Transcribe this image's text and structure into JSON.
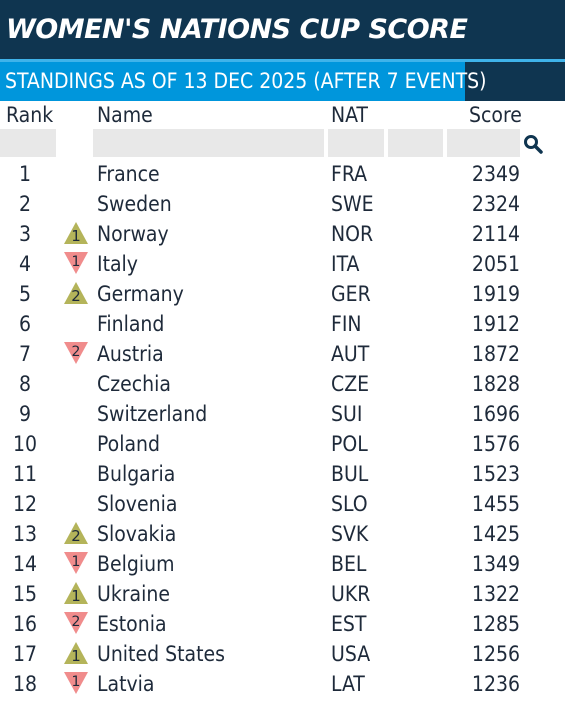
{
  "title": "WOMEN'S NATIONS CUP SCORE",
  "subtitle": "STANDINGS AS OF 13 DEC 2025 (AFTER 7 EVENTS)",
  "columns": {
    "rank": "Rank",
    "name": "Name",
    "nat": "NAT",
    "score": "Score"
  },
  "colors": {
    "header_bg": "#0f3550",
    "tab_bg": "#0096dc",
    "up": "#b4b45a",
    "down": "#f08c8c"
  },
  "rows": [
    {
      "rank": "1",
      "name": "France",
      "nat": "FRA",
      "score": "2349",
      "move": "",
      "change": ""
    },
    {
      "rank": "2",
      "name": "Sweden",
      "nat": "SWE",
      "score": "2324",
      "move": "",
      "change": ""
    },
    {
      "rank": "3",
      "name": "Norway",
      "nat": "NOR",
      "score": "2114",
      "move": "up",
      "change": "1"
    },
    {
      "rank": "4",
      "name": "Italy",
      "nat": "ITA",
      "score": "2051",
      "move": "down",
      "change": "1"
    },
    {
      "rank": "5",
      "name": "Germany",
      "nat": "GER",
      "score": "1919",
      "move": "up",
      "change": "2"
    },
    {
      "rank": "6",
      "name": "Finland",
      "nat": "FIN",
      "score": "1912",
      "move": "",
      "change": ""
    },
    {
      "rank": "7",
      "name": "Austria",
      "nat": "AUT",
      "score": "1872",
      "move": "down",
      "change": "2"
    },
    {
      "rank": "8",
      "name": "Czechia",
      "nat": "CZE",
      "score": "1828",
      "move": "",
      "change": ""
    },
    {
      "rank": "9",
      "name": "Switzerland",
      "nat": "SUI",
      "score": "1696",
      "move": "",
      "change": ""
    },
    {
      "rank": "10",
      "name": "Poland",
      "nat": "POL",
      "score": "1576",
      "move": "",
      "change": ""
    },
    {
      "rank": "11",
      "name": "Bulgaria",
      "nat": "BUL",
      "score": "1523",
      "move": "",
      "change": ""
    },
    {
      "rank": "12",
      "name": "Slovenia",
      "nat": "SLO",
      "score": "1455",
      "move": "",
      "change": ""
    },
    {
      "rank": "13",
      "name": "Slovakia",
      "nat": "SVK",
      "score": "1425",
      "move": "up",
      "change": "2"
    },
    {
      "rank": "14",
      "name": "Belgium",
      "nat": "BEL",
      "score": "1349",
      "move": "down",
      "change": "1"
    },
    {
      "rank": "15",
      "name": "Ukraine",
      "nat": "UKR",
      "score": "1322",
      "move": "up",
      "change": "1"
    },
    {
      "rank": "16",
      "name": "Estonia",
      "nat": "EST",
      "score": "1285",
      "move": "down",
      "change": "2"
    },
    {
      "rank": "17",
      "name": "United States",
      "nat": "USA",
      "score": "1256",
      "move": "up",
      "change": "1"
    },
    {
      "rank": "18",
      "name": "Latvia",
      "nat": "LAT",
      "score": "1236",
      "move": "down",
      "change": "1"
    }
  ]
}
